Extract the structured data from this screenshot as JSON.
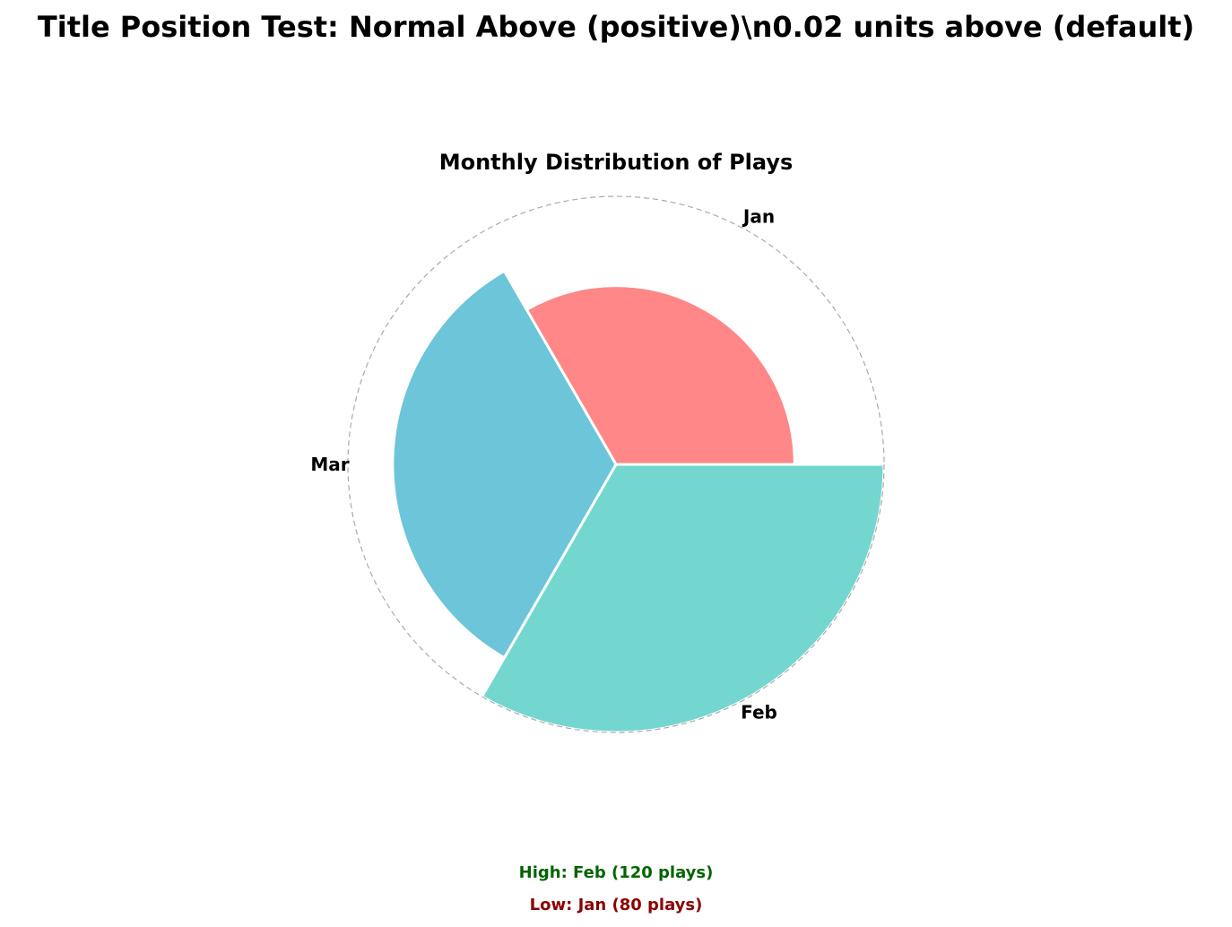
{
  "figure": {
    "suptitle": "Title Position Test: Normal Above (positive)\\n0.02 units above (default)"
  },
  "chart_data": {
    "type": "polar-bar",
    "title": "Monthly Distribution of Plays",
    "categories": [
      "Jan",
      "Feb",
      "Mar"
    ],
    "values": [
      80,
      120,
      100
    ],
    "colors": [
      "#FF8787",
      "#74D7CF",
      "#6CC5D9"
    ],
    "edge_color": "#ffffff",
    "unit": "plays",
    "radial_max": 120,
    "reference_circle": "dashed",
    "grid": false,
    "legend": "none"
  },
  "annotations": {
    "high_text": "High: Feb (120 plays)",
    "high_color": "#006400",
    "low_text": "Low: Jan (80 plays)",
    "low_color": "#8B0000"
  }
}
